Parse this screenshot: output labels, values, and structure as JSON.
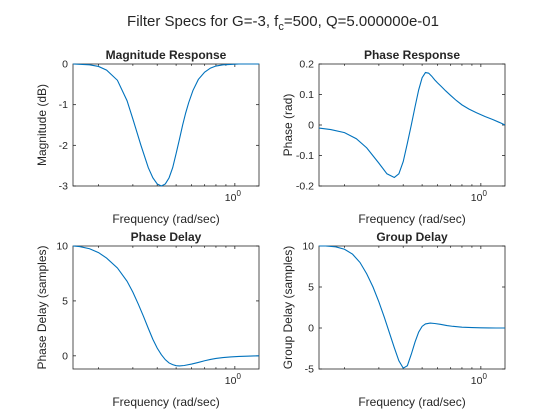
{
  "figure": {
    "title_prefix": "Filter Specs for G=-3, f",
    "title_subscript": "c",
    "title_suffix": "=500, Q=5.000000e-01",
    "series_color": "#0072BD"
  },
  "chart_data": [
    {
      "type": "line",
      "title": "Magnitude Response",
      "xlabel": "Frequency (rad/sec)",
      "ylabel": "Magnitude (dB)",
      "xscale": "log",
      "xlim": [
        0.148,
        1.33
      ],
      "ylim": [
        -3,
        0
      ],
      "yticks": [
        -3,
        -2,
        -1,
        0
      ],
      "ytick_labels": [
        "-3",
        "-2",
        "-1",
        "0"
      ],
      "xticks": [
        1
      ],
      "xtick_base": "10",
      "xtick_exp": "0",
      "grid": false,
      "series": [
        {
          "x": [
            0.148,
            0.18,
            0.2,
            0.22,
            0.25,
            0.28,
            0.3,
            0.33,
            0.36,
            0.38,
            0.4,
            0.42,
            0.44,
            0.46,
            0.48,
            0.5,
            0.52,
            0.54,
            0.56,
            0.58,
            0.61,
            0.65,
            0.7,
            0.75,
            0.8,
            0.87,
            0.95,
            1.05,
            1.15,
            1.25,
            1.33
          ],
          "y": [
            0,
            -0.02,
            -0.06,
            -0.15,
            -0.4,
            -0.9,
            -1.35,
            -2.0,
            -2.55,
            -2.8,
            -2.95,
            -3.0,
            -2.95,
            -2.8,
            -2.55,
            -2.2,
            -1.85,
            -1.5,
            -1.2,
            -0.95,
            -0.65,
            -0.38,
            -0.2,
            -0.1,
            -0.05,
            -0.02,
            -0.01,
            0,
            0,
            0,
            0
          ]
        }
      ]
    },
    {
      "type": "line",
      "title": "Phase Response",
      "xlabel": "Frequency (rad/sec)",
      "ylabel": "Phase (rad)",
      "xscale": "log",
      "xlim": [
        0.148,
        1.33
      ],
      "ylim": [
        -0.2,
        0.2
      ],
      "yticks": [
        -0.2,
        -0.1,
        0,
        0.1,
        0.2
      ],
      "ytick_labels": [
        "-0.2",
        "-0.1",
        "0",
        "0.1",
        "0.2"
      ],
      "xticks": [
        1
      ],
      "xtick_base": "10",
      "xtick_exp": "0",
      "grid": false,
      "series": [
        {
          "x": [
            0.148,
            0.17,
            0.2,
            0.23,
            0.26,
            0.3,
            0.33,
            0.36,
            0.38,
            0.4,
            0.42,
            0.44,
            0.46,
            0.48,
            0.5,
            0.52,
            0.54,
            0.56,
            0.58,
            0.6,
            0.63,
            0.66,
            0.7,
            0.75,
            0.8,
            0.87,
            0.95,
            1.05,
            1.15,
            1.25,
            1.33
          ],
          "y": [
            -0.01,
            -0.015,
            -0.025,
            -0.045,
            -0.075,
            -0.125,
            -0.16,
            -0.172,
            -0.16,
            -0.12,
            -0.06,
            0.0,
            0.06,
            0.115,
            0.155,
            0.172,
            0.17,
            0.16,
            0.148,
            0.138,
            0.125,
            0.112,
            0.097,
            0.08,
            0.066,
            0.052,
            0.04,
            0.028,
            0.018,
            0.008,
            0.0
          ]
        }
      ]
    },
    {
      "type": "line",
      "title": "Phase Delay",
      "xlabel": "Frequency (rad/sec)",
      "ylabel": "Phase Delay (samples)",
      "xscale": "log",
      "xlim": [
        0.148,
        1.33
      ],
      "ylim": [
        -1.2,
        10
      ],
      "yticks": [
        0,
        5,
        10
      ],
      "ytick_labels": [
        "0",
        "5",
        "10"
      ],
      "xticks": [
        1
      ],
      "xtick_base": "10",
      "xtick_exp": "0",
      "grid": false,
      "series": [
        {
          "x": [
            0.148,
            0.16,
            0.18,
            0.2,
            0.22,
            0.25,
            0.28,
            0.3,
            0.32,
            0.34,
            0.36,
            0.38,
            0.4,
            0.42,
            0.44,
            0.46,
            0.48,
            0.5,
            0.52,
            0.55,
            0.6,
            0.65,
            0.7,
            0.75,
            0.8,
            0.87,
            0.95,
            1.05,
            1.15,
            1.25,
            1.33
          ],
          "y": [
            10,
            9.95,
            9.75,
            9.4,
            8.9,
            8.0,
            6.8,
            5.8,
            4.7,
            3.6,
            2.5,
            1.5,
            0.7,
            0.1,
            -0.35,
            -0.65,
            -0.8,
            -0.9,
            -0.92,
            -0.88,
            -0.75,
            -0.6,
            -0.45,
            -0.33,
            -0.24,
            -0.16,
            -0.1,
            -0.06,
            -0.03,
            -0.01,
            0
          ]
        }
      ]
    },
    {
      "type": "line",
      "title": "Group Delay",
      "xlabel": "Frequency (rad/sec)",
      "ylabel": "Group Delay (samples)",
      "xscale": "log",
      "xlim": [
        0.148,
        1.33
      ],
      "ylim": [
        -5,
        10
      ],
      "yticks": [
        -5,
        0,
        5,
        10
      ],
      "ytick_labels": [
        "-5",
        "0",
        "5",
        "10"
      ],
      "xticks": [
        1
      ],
      "xtick_base": "10",
      "xtick_exp": "0",
      "grid": false,
      "series": [
        {
          "x": [
            0.148,
            0.16,
            0.18,
            0.2,
            0.22,
            0.24,
            0.26,
            0.28,
            0.3,
            0.32,
            0.34,
            0.36,
            0.38,
            0.4,
            0.42,
            0.44,
            0.46,
            0.48,
            0.5,
            0.52,
            0.55,
            0.58,
            0.62,
            0.67,
            0.72,
            0.8,
            0.9,
            1.0,
            1.1,
            1.2,
            1.33
          ],
          "y": [
            10,
            10,
            9.9,
            9.6,
            9.0,
            8.0,
            6.6,
            5.0,
            3.2,
            1.3,
            -0.6,
            -2.4,
            -4.0,
            -4.9,
            -4.6,
            -3.2,
            -1.7,
            -0.5,
            0.2,
            0.5,
            0.6,
            0.55,
            0.45,
            0.3,
            0.2,
            0.1,
            0.05,
            0.02,
            0.01,
            0,
            0
          ]
        }
      ]
    }
  ]
}
